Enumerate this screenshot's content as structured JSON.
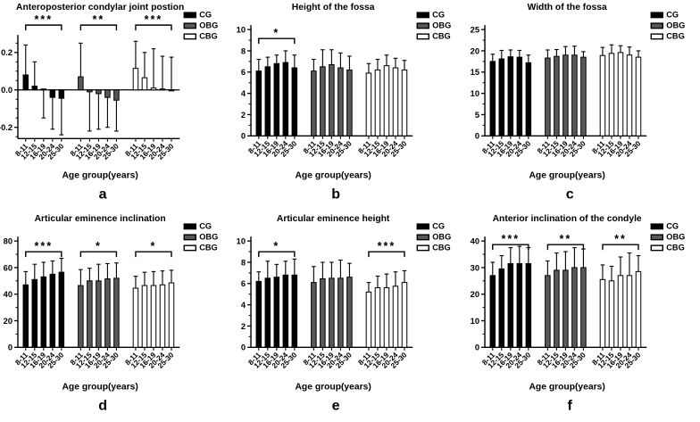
{
  "figure": {
    "background": "#ffffff",
    "x_axis_label": "Age group(years)",
    "age_categories": [
      "8-11",
      "12-15",
      "16-19",
      "20-24",
      "25-30"
    ],
    "legend": {
      "items": [
        {
          "label": "CG",
          "fill": "#000000",
          "stroke": "#000000"
        },
        {
          "label": "OBG",
          "fill": "#595959",
          "stroke": "#000000"
        },
        {
          "label": "CBG",
          "fill": "#ffffff",
          "stroke": "#000000"
        }
      ]
    }
  },
  "chart_data": [
    {
      "id": "a",
      "type": "bar",
      "letter": "a",
      "title": "Anteroposterior condylar joint postion",
      "xlabel": "Age group(years)",
      "categories": [
        "8-11",
        "12-15",
        "16-19",
        "20-24",
        "25-30"
      ],
      "ylim": [
        -0.26,
        0.27
      ],
      "yticks": [
        -0.2,
        0,
        0.2
      ],
      "ytick_labels": [
        "-0.2",
        "0.0",
        "0.2"
      ],
      "minor_step": 0.05,
      "series": [
        {
          "name": "CG",
          "values": [
            0.08,
            0.02,
            0.005,
            -0.04,
            -0.045
          ],
          "whiskers": [
            0.24,
            0.15,
            -0.15,
            -0.21,
            -0.24
          ]
        },
        {
          "name": "OBG",
          "values": [
            0.07,
            -0.01,
            -0.02,
            -0.04,
            -0.055
          ],
          "whiskers": [
            0.25,
            -0.22,
            -0.21,
            -0.2,
            -0.22
          ]
        },
        {
          "name": "CBG",
          "values": [
            0.115,
            0.065,
            0.01,
            0.005,
            -0.005
          ],
          "whiskers": [
            0.26,
            0.2,
            0.22,
            0.18,
            0.175
          ]
        }
      ],
      "significance": [
        "***",
        "**",
        "***"
      ]
    },
    {
      "id": "b",
      "type": "bar",
      "letter": "b",
      "title": "Height of the fossa",
      "xlabel": "Age group(years)",
      "categories": [
        "8-11",
        "12-15",
        "16-19",
        "20-24",
        "25-30"
      ],
      "ylim": [
        0,
        10
      ],
      "yticks": [
        0,
        2,
        4,
        6,
        8,
        10
      ],
      "ytick_labels": [
        "0",
        "2",
        "4",
        "6",
        "8",
        "10"
      ],
      "minor_step": 1,
      "series": [
        {
          "name": "CG",
          "values": [
            6.1,
            6.5,
            6.8,
            6.9,
            6.4
          ],
          "whiskers": [
            7.2,
            7.4,
            7.6,
            8.0,
            7.6
          ]
        },
        {
          "name": "OBG",
          "values": [
            6.1,
            6.5,
            6.7,
            6.4,
            6.2
          ],
          "whiskers": [
            7.2,
            8.1,
            8.1,
            7.8,
            7.5
          ]
        },
        {
          "name": "CBG",
          "values": [
            5.9,
            6.2,
            6.6,
            6.4,
            6.2
          ],
          "whiskers": [
            6.8,
            7.2,
            7.6,
            7.3,
            7.1
          ]
        }
      ],
      "significance": [
        "*",
        null,
        null
      ]
    },
    {
      "id": "c",
      "type": "bar",
      "letter": "c",
      "title": "Width of the fossa",
      "xlabel": "Age group(years)",
      "categories": [
        "8-11",
        "12-15",
        "16-19",
        "20-24",
        "25-30"
      ],
      "ylim": [
        0,
        25
      ],
      "yticks": [
        0,
        5,
        10,
        15,
        20,
        25
      ],
      "ytick_labels": [
        "0",
        "5",
        "10",
        "15",
        "20",
        "25"
      ],
      "minor_step": 2.5,
      "series": [
        {
          "name": "CG",
          "values": [
            17.5,
            18.1,
            18.6,
            18.5,
            17.2
          ],
          "whiskers": [
            19.2,
            20.1,
            20.2,
            20.1,
            19.0
          ]
        },
        {
          "name": "OBG",
          "values": [
            18.3,
            18.7,
            19.0,
            19.0,
            18.5
          ],
          "whiskers": [
            20.2,
            20.3,
            21.0,
            21.1,
            19.8
          ]
        },
        {
          "name": "CBG",
          "values": [
            18.9,
            19.4,
            19.6,
            19.0,
            18.5
          ],
          "whiskers": [
            20.8,
            21.4,
            21.2,
            20.9,
            20.0
          ]
        }
      ],
      "significance": [
        null,
        null,
        null
      ]
    },
    {
      "id": "d",
      "type": "bar",
      "letter": "d",
      "title": "Articular eminence inclination",
      "xlabel": "Age group(years)",
      "categories": [
        "8-11",
        "12-15",
        "16-19",
        "20-24",
        "25-30"
      ],
      "ylim": [
        0,
        80
      ],
      "yticks": [
        0,
        20,
        40,
        60,
        80
      ],
      "ytick_labels": [
        "0",
        "20",
        "40",
        "60",
        "80"
      ],
      "minor_step": 10,
      "series": [
        {
          "name": "CG",
          "values": [
            47,
            51,
            53,
            55,
            56.5
          ],
          "whiskers": [
            57,
            62.5,
            64,
            65,
            67
          ]
        },
        {
          "name": "OBG",
          "values": [
            46.5,
            50,
            50,
            51.5,
            52
          ],
          "whiskers": [
            58.5,
            59.5,
            62.5,
            63,
            63.5
          ]
        },
        {
          "name": "CBG",
          "values": [
            44.5,
            46.5,
            46.5,
            47,
            48.5
          ],
          "whiskers": [
            53.5,
            56.5,
            57,
            57.5,
            58
          ]
        }
      ],
      "significance": [
        "***",
        "*",
        "*"
      ]
    },
    {
      "id": "e",
      "type": "bar",
      "letter": "e",
      "title": "Articular eminence height",
      "xlabel": "Age group(years)",
      "categories": [
        "8-11",
        "12-15",
        "16-19",
        "20-24",
        "25-30"
      ],
      "ylim": [
        0,
        10
      ],
      "yticks": [
        0,
        2,
        4,
        6,
        8,
        10
      ],
      "ytick_labels": [
        "0",
        "2",
        "4",
        "6",
        "8",
        "10"
      ],
      "minor_step": 1,
      "series": [
        {
          "name": "CG",
          "values": [
            6.2,
            6.5,
            6.6,
            6.8,
            6.8
          ],
          "whiskers": [
            7.1,
            8.1,
            7.8,
            8.1,
            8.3
          ]
        },
        {
          "name": "OBG",
          "values": [
            6.1,
            6.45,
            6.5,
            6.5,
            6.6
          ],
          "whiskers": [
            7.6,
            8.0,
            8.0,
            8.2,
            7.9
          ]
        },
        {
          "name": "CBG",
          "values": [
            5.2,
            5.6,
            5.6,
            5.75,
            6.1
          ],
          "whiskers": [
            6.1,
            6.7,
            6.9,
            7.1,
            7.2
          ]
        }
      ],
      "significance": [
        "*",
        null,
        "***"
      ]
    },
    {
      "id": "f",
      "type": "bar",
      "letter": "f",
      "title": "Anterior inclination of the condyle",
      "xlabel": "Age group(years)",
      "categories": [
        "8-11",
        "12-15",
        "16-19",
        "20-24",
        "25-30"
      ],
      "ylim": [
        0,
        40
      ],
      "yticks": [
        0,
        10,
        20,
        30,
        40
      ],
      "ytick_labels": [
        "0",
        "10",
        "20",
        "30",
        "40"
      ],
      "minor_step": 5,
      "series": [
        {
          "name": "CG",
          "values": [
            27,
            29.5,
            31.5,
            31.5,
            31.5
          ],
          "whiskers": [
            32,
            34.5,
            37.5,
            38,
            37.5
          ]
        },
        {
          "name": "OBG",
          "values": [
            27,
            29,
            29,
            30,
            30
          ],
          "whiskers": [
            32.5,
            35.5,
            36,
            37.5,
            37
          ]
        },
        {
          "name": "CBG",
          "values": [
            25.5,
            25,
            27,
            27,
            28.5
          ],
          "whiskers": [
            31,
            30.5,
            34,
            35.5,
            34.5
          ]
        }
      ],
      "significance": [
        "***",
        "**",
        "**"
      ]
    }
  ]
}
